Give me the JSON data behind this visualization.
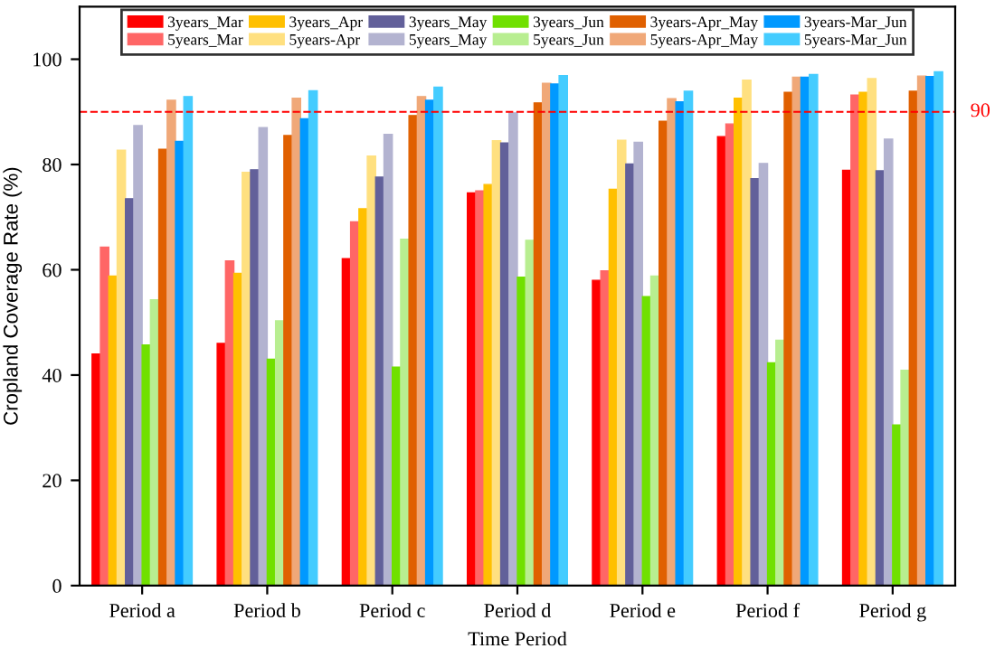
{
  "chart_data": {
    "type": "bar",
    "xlabel": "Time Period",
    "ylabel": "Cropland Coverage Rate (%)",
    "categories": [
      "Period a",
      "Period b",
      "Period c",
      "Period d",
      "Period e",
      "Period f",
      "Period g"
    ],
    "series": [
      {
        "name": "3years_Mar",
        "color": "#ff0000",
        "values": [
          44,
          46,
          62.1,
          74.6,
          58.0,
          85.3,
          78.9
        ]
      },
      {
        "name": "5years_Mar",
        "color": "#ff6666",
        "values": [
          64.3,
          61.7,
          69.1,
          75,
          59.8,
          87.7,
          93.2
        ]
      },
      {
        "name": "3years_Apr",
        "color": "#ffc000",
        "values": [
          58.8,
          59.3,
          71.6,
          76.2,
          75.3,
          92.6,
          93.7
        ]
      },
      {
        "name": "5years-Apr",
        "color": "#ffe080",
        "values": [
          82.7,
          78.5,
          81.6,
          84.5,
          84.6,
          96,
          96.3
        ]
      },
      {
        "name": "3years_May",
        "color": "#62609a",
        "values": [
          73.5,
          79,
          77.6,
          84.1,
          80.1,
          77.3,
          78.8
        ]
      },
      {
        "name": "5years_May",
        "color": "#b3b3d0",
        "values": [
          87.4,
          87,
          85.7,
          89.8,
          84.2,
          80.2,
          84.8
        ]
      },
      {
        "name": "3years_Jun",
        "color": "#70e000",
        "values": [
          45.7,
          43,
          41.5,
          58.6,
          54.9,
          42.3,
          30.5
        ]
      },
      {
        "name": "5years_Jun",
        "color": "#b8ee90",
        "values": [
          54.3,
          50.3,
          65.8,
          65.6,
          58.8,
          46.6,
          40.9
        ]
      },
      {
        "name": "3years-Apr_May",
        "color": "#e06000",
        "values": [
          82.9,
          85.5,
          89.3,
          91.7,
          88.2,
          93.7,
          93.9
        ]
      },
      {
        "name": "5years-Apr_May",
        "color": "#f0a878",
        "values": [
          92.2,
          92.6,
          92.9,
          95.4,
          92.5,
          96.6,
          96.8
        ]
      },
      {
        "name": "3years-Mar_Jun",
        "color": "#0099ff",
        "values": [
          84.4,
          88.7,
          92.2,
          95.3,
          91.9,
          96.6,
          96.7
        ]
      },
      {
        "name": "5years-Mar_Jun",
        "color": "#44ccff",
        "values": [
          92.9,
          94,
          94.7,
          96.9,
          93.9,
          97.1,
          97.6
        ]
      }
    ],
    "ylim": [
      0,
      110
    ],
    "yticks": [
      0,
      20,
      40,
      60,
      80,
      100
    ],
    "ref_lines": [
      {
        "axis": "y",
        "value": 90,
        "label": "90",
        "color": "#ff0000",
        "line_style": "dashed"
      }
    ],
    "legend": "top",
    "grid": false
  }
}
